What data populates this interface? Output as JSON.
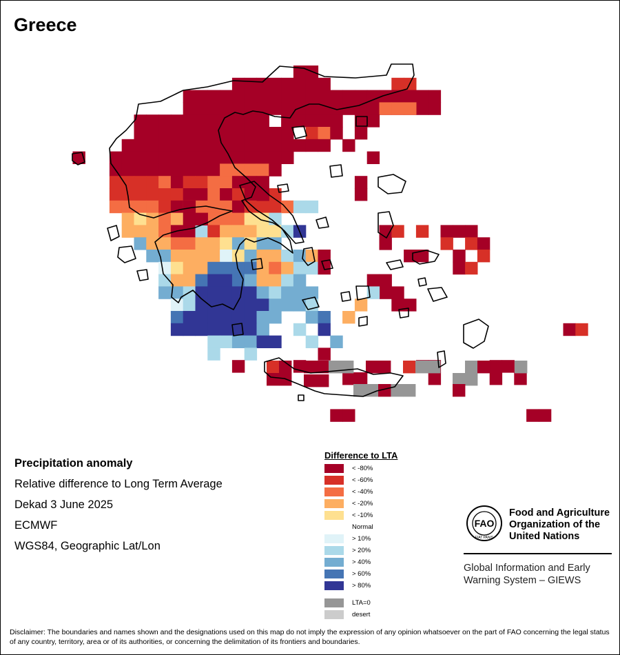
{
  "map": {
    "title": "Greece",
    "info": {
      "heading": "Precipitation anomaly",
      "line1": "Relative difference to Long Term Average",
      "line2": "Dekad 3 June 2025",
      "line3": "ECMWF",
      "line4": "WGS84, Geographic Lat/Lon"
    },
    "palette": {
      "lt80": "#a50026",
      "lt60": "#d73027",
      "lt40": "#f46d43",
      "lt20": "#fdae61",
      "lt10": "#fee090",
      "normal": "#ffffff",
      "gt10": "#e0f3f8",
      "gt20": "#abd9e9",
      "gt40": "#74add1",
      "gt60": "#4575b4",
      "gt80": "#313695",
      "lta0": "#969696",
      "desert": "#cccccc"
    },
    "legend": {
      "title": "Difference to LTA",
      "items": [
        {
          "label": "< -80%",
          "color": "#a50026"
        },
        {
          "label": "< -60%",
          "color": "#d73027"
        },
        {
          "label": "< -40%",
          "color": "#f46d43"
        },
        {
          "label": "< -20%",
          "color": "#fdae61"
        },
        {
          "label": "< -10%",
          "color": "#fee090"
        },
        {
          "label": "Normal",
          "color": "#ffffff"
        },
        {
          "label": "> 10%",
          "color": "#e0f3f8"
        },
        {
          "label": "> 20%",
          "color": "#abd9e9"
        },
        {
          "label": "> 40%",
          "color": "#74add1"
        },
        {
          "label": "> 60%",
          "color": "#4575b4"
        },
        {
          "label": "> 80%",
          "color": "#313695"
        }
      ],
      "extra": [
        {
          "label": "LTA=0",
          "color": "#969696"
        },
        {
          "label": "desert",
          "color": "#cccccc"
        }
      ]
    },
    "fao": {
      "logo_text": "FAO",
      "logo_motto": "FIAT PANIS",
      "name": [
        "Food and Agriculture",
        "Organization of the",
        "United Nations"
      ],
      "system": [
        "Global Information and Early",
        "Warning System – GIEWS"
      ]
    },
    "disclaimer": "Disclaimer: The boundaries and names shown and the designations used on this map do not imply the expression of any opinion whatsoever on the part of FAO concerning the legal status of any country, territory, area or of its authorities, or concerning the delimitation of its frontiers and boundaries."
  }
}
